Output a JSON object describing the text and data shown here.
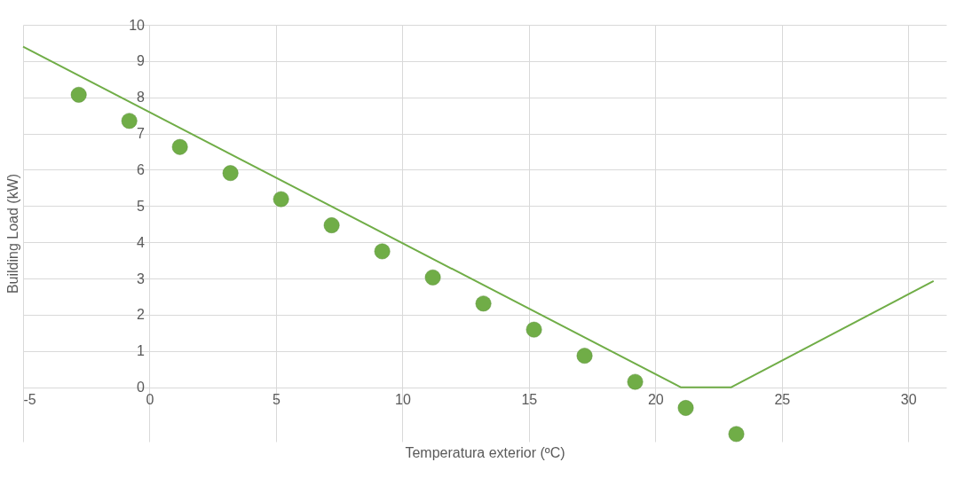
{
  "chart_data": {
    "type": "scatter",
    "xlabel": "Temperatura exterior (ºC)",
    "ylabel": "Building Load (kW)",
    "xlim": [
      -5,
      31.5
    ],
    "ylim": [
      -1.5,
      10
    ],
    "xticks": [
      -5,
      0,
      5,
      10,
      15,
      20,
      25,
      30
    ],
    "yticks": [
      0,
      1,
      2,
      3,
      4,
      5,
      6,
      7,
      8,
      9,
      10
    ],
    "grid": true,
    "marker": "circle",
    "x": [
      -2.8,
      -0.8,
      1.2,
      3.2,
      5.2,
      7.2,
      9.2,
      11.2,
      13.2,
      15.2,
      17.2,
      19.2,
      21.2,
      23.2
    ],
    "series": [
      {
        "color": "#70ad47",
        "values": [
          8.07,
          7.35,
          6.63,
          5.91,
          5.19,
          4.47,
          3.75,
          3.03,
          2.31,
          1.59,
          0.87,
          0.15,
          -0.57,
          -1.29
        ]
      },
      {
        "type": "line",
        "color": "#70ad47",
        "line_style": "solid",
        "marker": "none",
        "x": [
          -5,
          21,
          23,
          31
        ],
        "values": [
          9.4,
          0,
          0,
          2.93
        ]
      }
    ]
  }
}
